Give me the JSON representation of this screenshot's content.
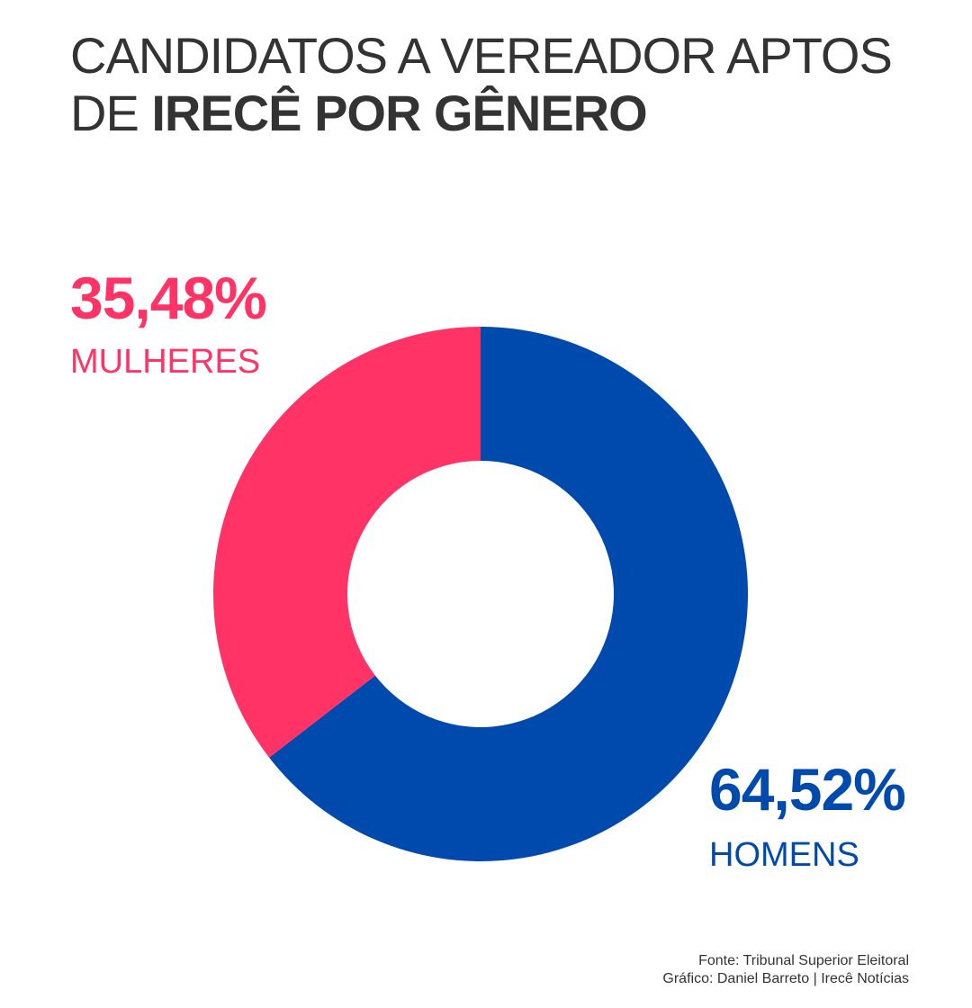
{
  "title": {
    "line1": "CANDIDATOS A VEREADOR APTOS",
    "line2_prefix": "DE ",
    "line2_bold": "IRECÊ POR GÊNERO"
  },
  "colors": {
    "women": "#ff3366",
    "men": "#004aad",
    "title": "#333333"
  },
  "chart_data": {
    "type": "pie",
    "variant": "donut",
    "title": "CANDIDATOS A VEREADOR APTOS DE IRECÊ POR GÊNERO",
    "categories": [
      "MULHERES",
      "HOMENS"
    ],
    "values": [
      35.48,
      64.52
    ],
    "value_labels": [
      "35,48%",
      "64,52%"
    ],
    "colors": [
      "#ff3366",
      "#004aad"
    ],
    "legend": "none"
  },
  "footer": {
    "source": "Fonte: Tribunal Superior Eleitoral",
    "credit": "Gráfico: Daniel Barreto | Irecê Notícias"
  }
}
